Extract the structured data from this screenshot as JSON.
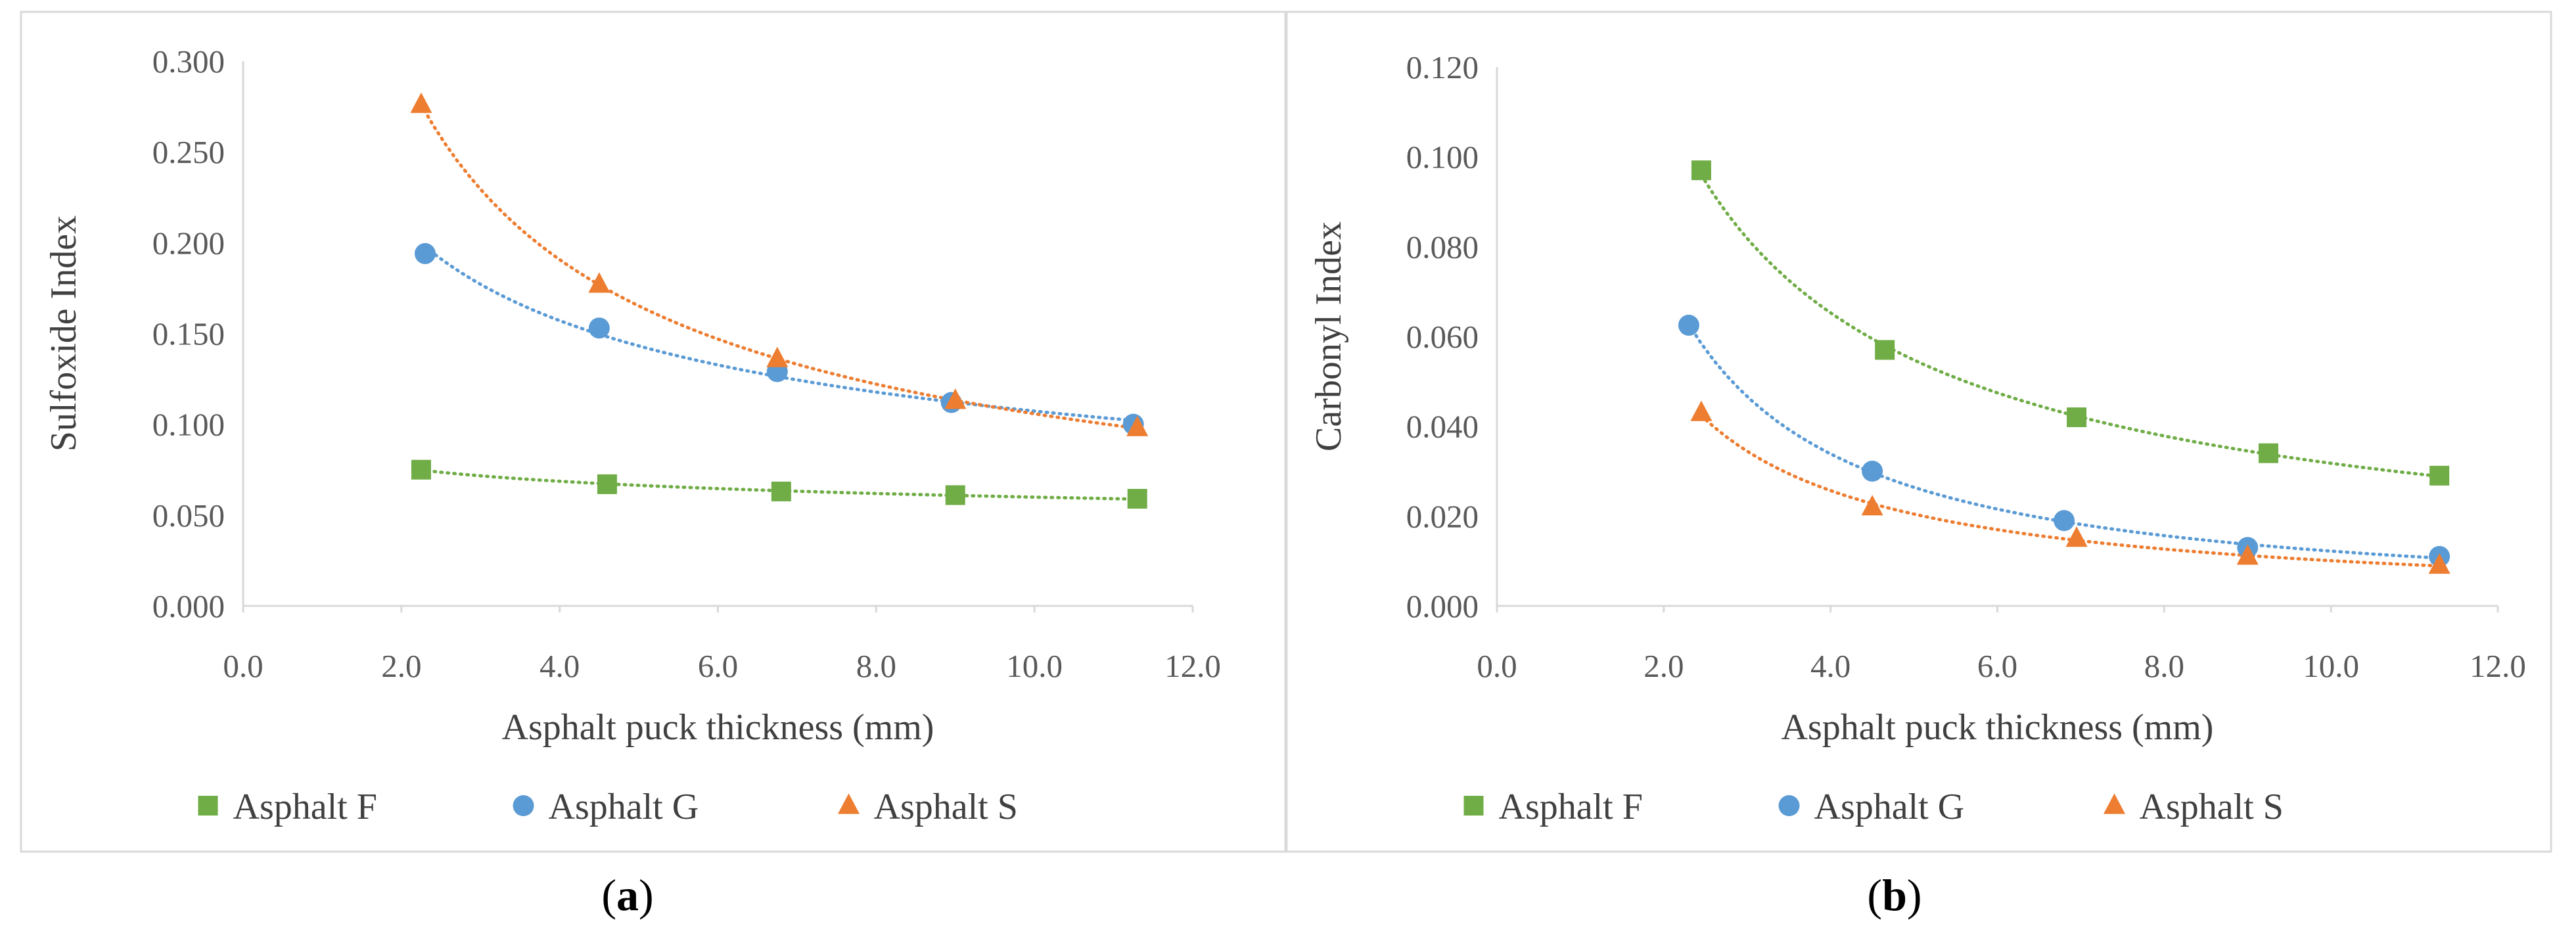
{
  "chart_data": [
    {
      "type": "scatter",
      "panel": "(a)",
      "panel_letter": "a",
      "title": "",
      "xlabel": "Asphalt puck thickness (mm)",
      "ylabel": "Sulfoxide Index",
      "xlim": [
        0,
        12
      ],
      "ylim": [
        0,
        0.3
      ],
      "xticks": [
        "0.0",
        "2.0",
        "4.0",
        "6.0",
        "8.0",
        "10.0",
        "12.0"
      ],
      "yticks": [
        "0.000",
        "0.050",
        "0.100",
        "0.150",
        "0.200",
        "0.250",
        "0.300"
      ],
      "grid": false,
      "legend_position": "bottom",
      "trendline": "power, dotted",
      "series": [
        {
          "name": "Asphalt F",
          "marker": "square",
          "color": "#70AD47",
          "x": [
            2.25,
            4.6,
            6.8,
            9.0,
            11.3
          ],
          "y": [
            0.075,
            0.067,
            0.063,
            0.061,
            0.059
          ]
        },
        {
          "name": "Asphalt G",
          "marker": "circle",
          "color": "#5B9BD5",
          "x": [
            2.3,
            4.5,
            6.75,
            8.95,
            11.25
          ],
          "y": [
            0.194,
            0.153,
            0.129,
            0.112,
            0.1
          ]
        },
        {
          "name": "Asphalt S",
          "marker": "triangle",
          "color": "#ED7D31",
          "x": [
            2.25,
            4.5,
            6.75,
            9.0,
            11.3
          ],
          "y": [
            0.276,
            0.177,
            0.136,
            0.113,
            0.098
          ]
        }
      ]
    },
    {
      "type": "scatter",
      "panel": "(b)",
      "panel_letter": "b",
      "title": "",
      "xlabel": "Asphalt puck thickness (mm)",
      "ylabel": "Carbonyl Index",
      "xlim": [
        0,
        12
      ],
      "ylim": [
        0,
        0.12
      ],
      "xticks": [
        "0.0",
        "2.0",
        "4.0",
        "6.0",
        "8.0",
        "10.0",
        "12.0"
      ],
      "yticks": [
        "0.000",
        "0.020",
        "0.040",
        "0.060",
        "0.080",
        "0.100",
        "0.120"
      ],
      "grid": false,
      "legend_position": "bottom",
      "trendline": "power, dotted",
      "series": [
        {
          "name": "Asphalt F",
          "marker": "square",
          "color": "#70AD47",
          "x": [
            2.45,
            4.65,
            6.95,
            9.25,
            11.3
          ],
          "y": [
            0.097,
            0.057,
            0.042,
            0.034,
            0.029
          ]
        },
        {
          "name": "Asphalt G",
          "marker": "circle",
          "color": "#5B9BD5",
          "x": [
            2.3,
            4.5,
            6.8,
            9.0,
            11.3
          ],
          "y": [
            0.0625,
            0.03,
            0.019,
            0.013,
            0.011
          ]
        },
        {
          "name": "Asphalt S",
          "marker": "triangle",
          "color": "#ED7D31",
          "x": [
            2.45,
            4.5,
            6.95,
            9.0,
            11.3
          ],
          "y": [
            0.043,
            0.022,
            0.015,
            0.011,
            0.009
          ]
        }
      ]
    }
  ]
}
